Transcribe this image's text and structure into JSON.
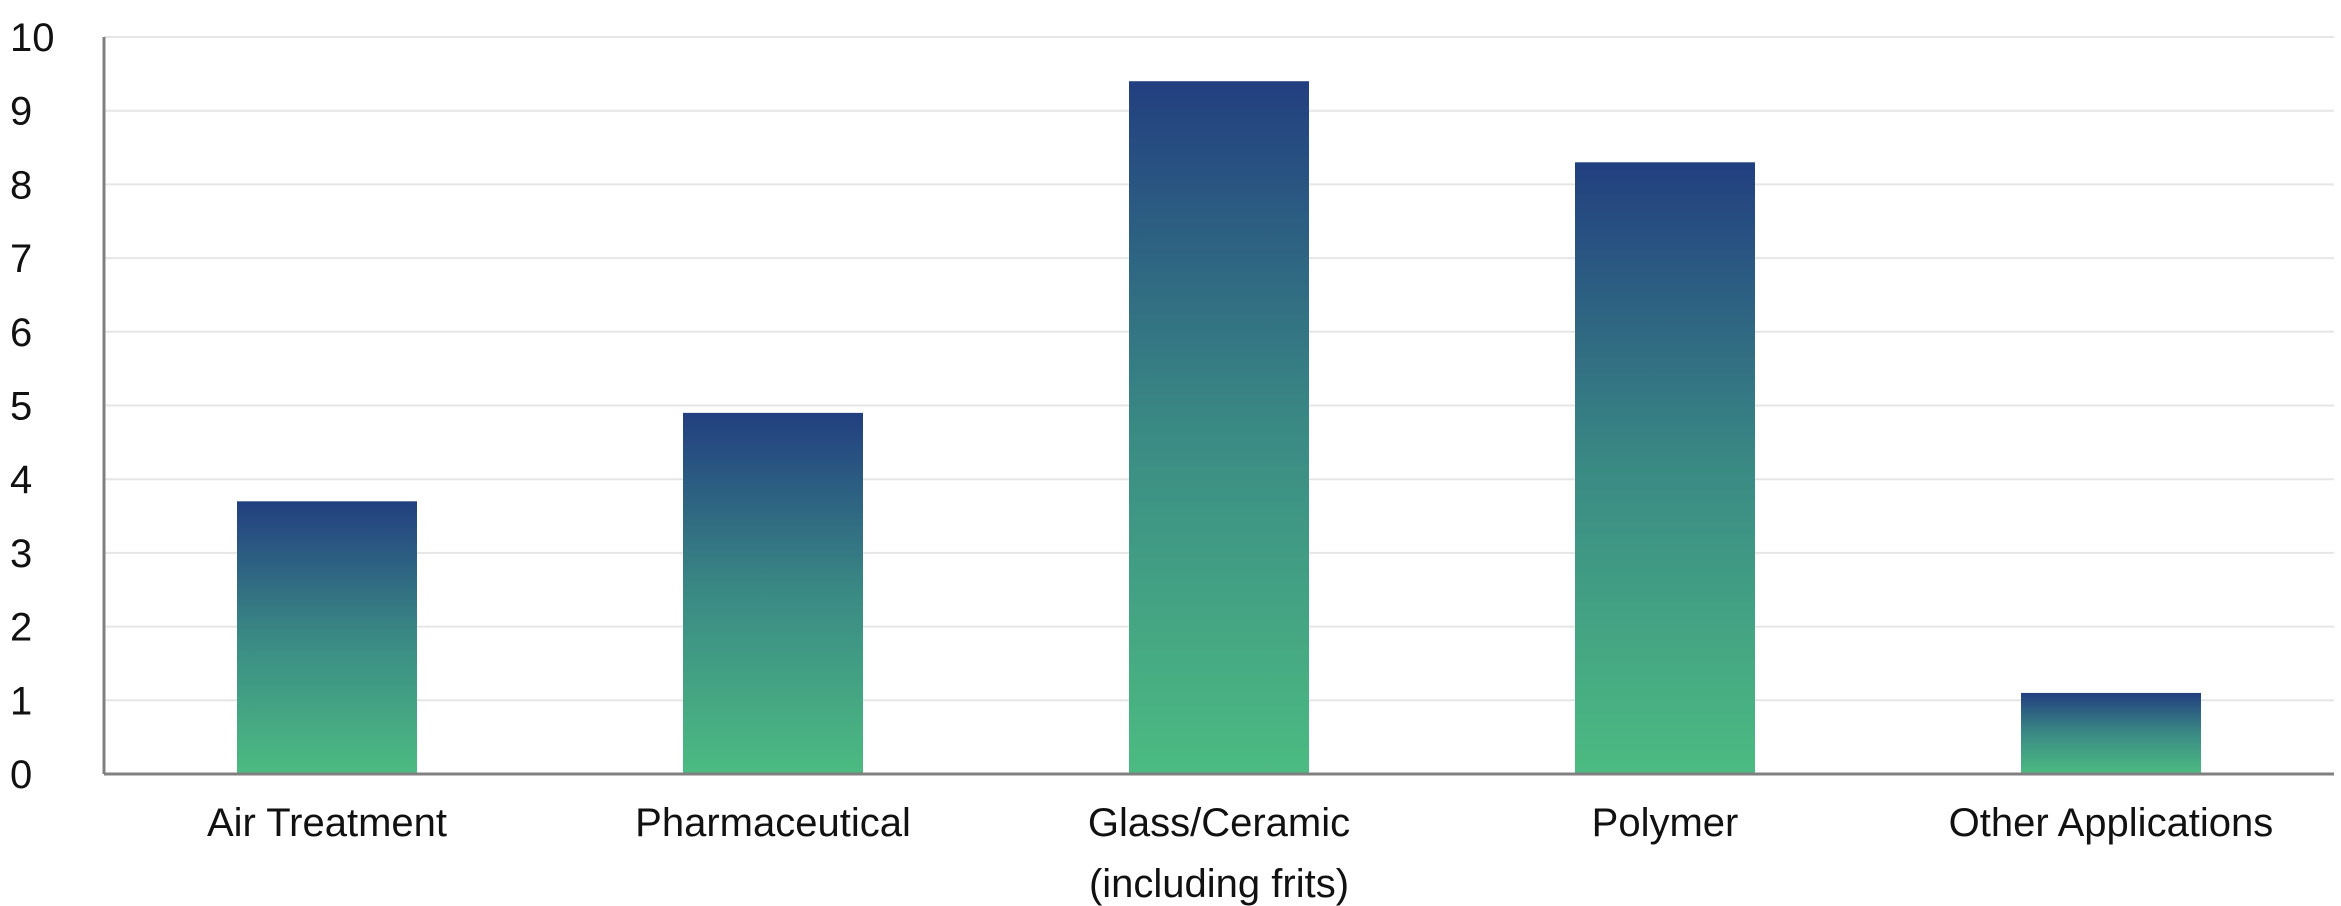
{
  "chart_data": {
    "type": "bar",
    "title": "",
    "xlabel": "",
    "ylabel": "",
    "categories": [
      [
        "Air Treatment"
      ],
      [
        "Pharmaceutical"
      ],
      [
        "Glass/Ceramic",
        "(including frits)"
      ],
      [
        "Polymer"
      ],
      [
        "Other Applications"
      ]
    ],
    "values": [
      3.7,
      4.9,
      9.4,
      8.3,
      1.1
    ],
    "ylim": [
      0,
      10
    ],
    "yticks": [
      "0",
      "1",
      "2",
      "3",
      "4",
      "5",
      "6",
      "7",
      "8",
      "9",
      "10"
    ],
    "grid": true,
    "legend": "none",
    "colors": {
      "bar_top": "#223f80",
      "bar_mid": "#3a8a84",
      "bar_bottom": "#4cbb82",
      "grid": "#e6e6e6",
      "axis": "#808080"
    }
  }
}
